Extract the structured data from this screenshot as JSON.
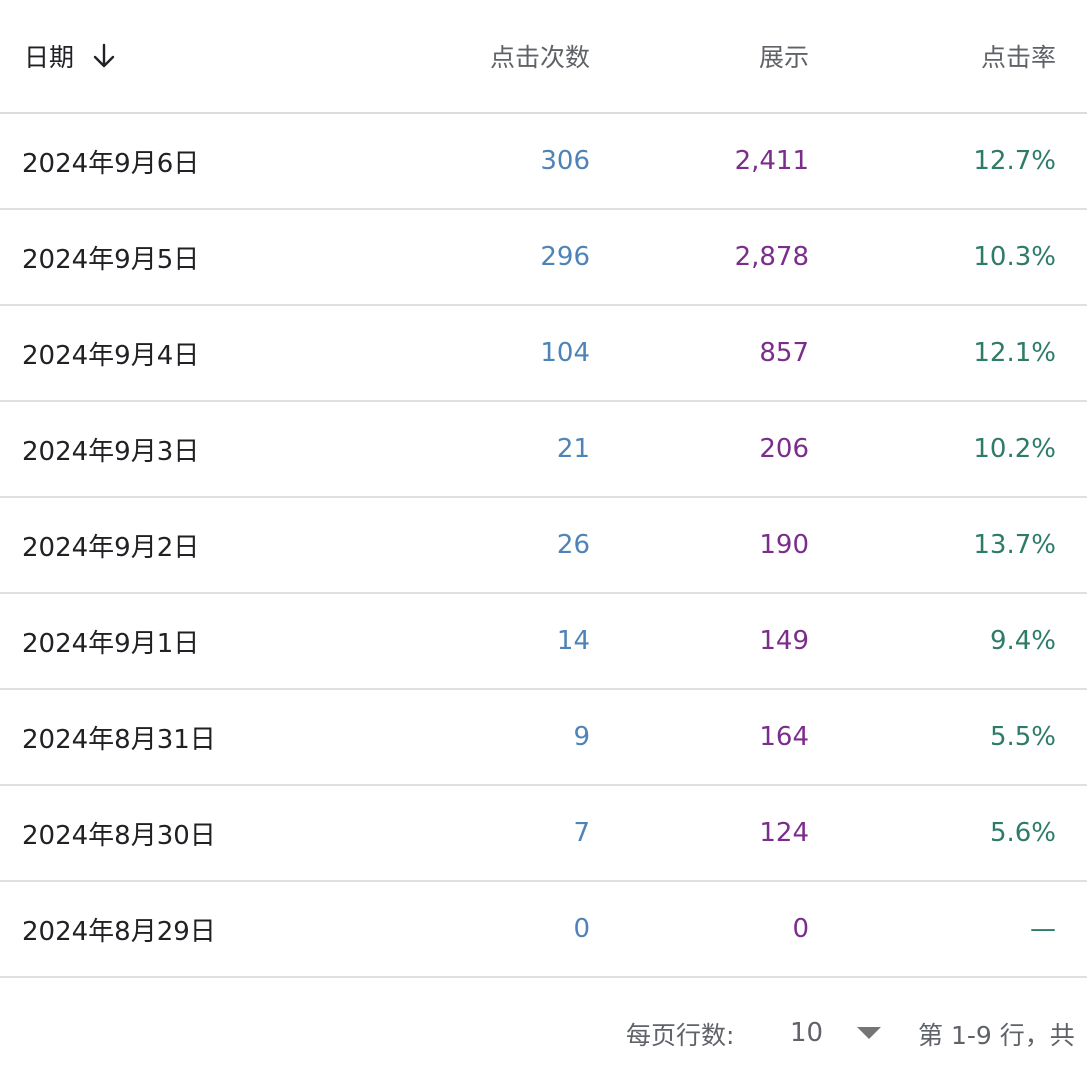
{
  "table": {
    "headers": {
      "date": "日期",
      "clicks": "点击次数",
      "impressions": "展示",
      "ctr": "点击率"
    },
    "sort_icon": "arrow-down-icon",
    "rows": [
      {
        "date": "2024年9月6日",
        "clicks": "306",
        "impressions": "2,411",
        "ctr": "12.7%"
      },
      {
        "date": "2024年9月5日",
        "clicks": "296",
        "impressions": "2,878",
        "ctr": "10.3%"
      },
      {
        "date": "2024年9月4日",
        "clicks": "104",
        "impressions": "857",
        "ctr": "12.1%"
      },
      {
        "date": "2024年9月3日",
        "clicks": "21",
        "impressions": "206",
        "ctr": "10.2%"
      },
      {
        "date": "2024年9月2日",
        "clicks": "26",
        "impressions": "190",
        "ctr": "13.7%"
      },
      {
        "date": "2024年9月1日",
        "clicks": "14",
        "impressions": "149",
        "ctr": "9.4%"
      },
      {
        "date": "2024年8月31日",
        "clicks": "9",
        "impressions": "164",
        "ctr": "5.5%"
      },
      {
        "date": "2024年8月30日",
        "clicks": "7",
        "impressions": "124",
        "ctr": "5.6%"
      },
      {
        "date": "2024年8月29日",
        "clicks": "0",
        "impressions": "0",
        "ctr": "—"
      }
    ]
  },
  "pagination": {
    "rows_per_page_label": "每页行数:",
    "rows_per_page_value": "10",
    "range_text": "第 1-9 行，共"
  },
  "colors": {
    "clicks": "#4e83b8",
    "impressions": "#7b2d8b",
    "ctr": "#2e7b68"
  }
}
